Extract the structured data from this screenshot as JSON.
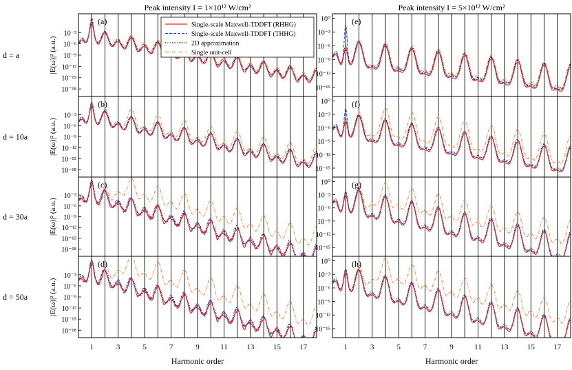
{
  "figure": {
    "column_titles": [
      "Peak intensity I = 1×10¹² W/cm²",
      "Peak intensity I = 5×10¹² W/cm²"
    ],
    "row_labels": [
      "d = a",
      "d = 10a",
      "d = 30a",
      "d = 50a"
    ],
    "ylabel": "|E(ω)|² (a.u.)",
    "xlabel": "Harmonic order",
    "colors": {
      "rhhg": "#e8202a",
      "thhg": "#1f3fd6",
      "approx2d": "#000000",
      "single": "#f08a3c"
    }
  },
  "chart_data": {
    "type": "line",
    "layout": "4x2 grid",
    "xlabel": "Harmonic order",
    "ylabel": "|E(ω)|² (a.u.)",
    "xlim": [
      0,
      18
    ],
    "x_ticks": [
      "1",
      "3",
      "5",
      "7",
      "9",
      "11",
      "13",
      "15",
      "17"
    ],
    "yscale": "log",
    "legend": {
      "placement": "top-right of panel (a)",
      "entries": [
        {
          "key": "rhhg",
          "label": "Single-scale Maxwell-TDDFT (RHHG)",
          "color": "#e8202a",
          "style": "solid"
        },
        {
          "key": "thhg",
          "label": "Single-scale Maxwell-TDDFT (THHG)",
          "color": "#1f3fd6",
          "style": "dashed"
        },
        {
          "key": "approx2d",
          "label": "2D approximation",
          "color": "#000000",
          "style": "dotted"
        },
        {
          "key": "single",
          "label": "Single unit-cell",
          "color": "#f08a3c",
          "style": "dashdot"
        }
      ]
    },
    "panels": [
      {
        "label": "(a)",
        "row": 0,
        "col": 0,
        "row_label": "d = a",
        "ylim_exp": [
          -20,
          2
        ],
        "yticks": [
          "10⁻³",
          "10⁻⁶",
          "10⁻⁹",
          "10⁻¹²",
          "10⁻¹⁵",
          "10⁻¹⁸"
        ],
        "ytick_exp": [
          -3,
          -6,
          -9,
          -12,
          -15,
          -18
        ],
        "model": {
          "p1": -2.5,
          "floor": -13.0,
          "hi": -1.5,
          "dip": 2.5,
          "sep": 0.0,
          "sepOdd": 0.5,
          "sepEven": 0.5,
          "thhg1": 1.2,
          "osc": 0.3
        }
      },
      {
        "label": "(e)",
        "row": 0,
        "col": 1,
        "ylim_exp": [
          -17,
          1
        ],
        "yticks": [
          "10⁰",
          "10⁻³",
          "10⁻⁶",
          "10⁻⁹",
          "10⁻¹²",
          "10⁻¹⁵"
        ],
        "ytick_exp": [
          0,
          -3,
          -6,
          -9,
          -12,
          -15
        ],
        "model": {
          "p1": -5.0,
          "floor": -10.5,
          "hi": -5.0,
          "dip": 2.0,
          "sep": 0.0,
          "sepOdd": 0.5,
          "sepEven": 0.5,
          "thhg1": 4.8,
          "osc": 0.3
        }
      },
      {
        "label": "(b)",
        "row": 1,
        "col": 0,
        "row_label": "d = 10a",
        "ylim_exp": [
          -20,
          2
        ],
        "yticks": [
          "10⁻³",
          "10⁻⁶",
          "10⁻⁹",
          "10⁻¹²",
          "10⁻¹⁵",
          "10⁻¹⁸"
        ],
        "ytick_exp": [
          -3,
          -6,
          -9,
          -12,
          -15,
          -18
        ],
        "model": {
          "p1": -1.5,
          "floor": -13.5,
          "hi": -2.5,
          "dip": 2.5,
          "sep": 2.0,
          "sepOdd": 0.5,
          "sepEven": 2.0,
          "thhg1": 0.8,
          "osc": 0.3
        }
      },
      {
        "label": "(f)",
        "row": 1,
        "col": 1,
        "ylim_exp": [
          -17,
          1
        ],
        "yticks": [
          "10⁰",
          "10⁻³",
          "10⁻⁶",
          "10⁻⁹",
          "10⁻¹²",
          "10⁻¹⁵"
        ],
        "ytick_exp": [
          0,
          -3,
          -6,
          -9,
          -12,
          -15
        ],
        "model": {
          "p1": -3.0,
          "floor": -10.5,
          "hi": -5.0,
          "dip": 2.0,
          "sep": 2.5,
          "sepOdd": 1.5,
          "sepEven": 2.5,
          "thhg1": 2.5,
          "osc": 0.3
        }
      },
      {
        "label": "(c)",
        "row": 2,
        "col": 0,
        "row_label": "d = 30a",
        "ylim_exp": [
          -20,
          2
        ],
        "yticks": [
          "10⁻³",
          "10⁻⁶",
          "10⁻⁹",
          "10⁻¹²",
          "10⁻¹⁵",
          "10⁻¹⁸"
        ],
        "ytick_exp": [
          -3,
          -6,
          -9,
          -12,
          -15,
          -18
        ],
        "model": {
          "p1": -1.0,
          "floor": -17.5,
          "hi": -2.0,
          "dip": 3.0,
          "sep": 5.0,
          "sepOdd": 4.0,
          "sepEven": 5.5,
          "thhg1": 0.0,
          "osc": 1.0
        }
      },
      {
        "label": "(g)",
        "row": 2,
        "col": 1,
        "ylim_exp": [
          -17,
          1
        ],
        "yticks": [
          "10⁰",
          "10⁻³",
          "10⁻⁶",
          "10⁻⁹",
          "10⁻¹²",
          "10⁻¹⁵"
        ],
        "ytick_exp": [
          0,
          -3,
          -6,
          -9,
          -12,
          -15
        ],
        "model": {
          "p1": -1.5,
          "floor": -12.0,
          "hi": -5.0,
          "dip": 2.5,
          "sep": 3.5,
          "sepOdd": 3.5,
          "sepEven": 3.0,
          "thhg1": 0.5,
          "osc": 0.3
        }
      },
      {
        "label": "(d)",
        "row": 3,
        "col": 0,
        "row_label": "d = 50a",
        "ylim_exp": [
          -20,
          2
        ],
        "yticks": [
          "10⁻³",
          "10⁻⁶",
          "10⁻⁹",
          "10⁻¹²",
          "10⁻¹⁵",
          "10⁻¹⁸"
        ],
        "ytick_exp": [
          -3,
          -6,
          -9,
          -12,
          -15,
          -18
        ],
        "model": {
          "p1": -1.0,
          "floor": -18.0,
          "hi": -2.0,
          "dip": 3.0,
          "sep": 6.0,
          "sepOdd": 4.5,
          "sepEven": 6.5,
          "thhg1": 0.0,
          "osc": 1.0
        }
      },
      {
        "label": "(h)",
        "row": 3,
        "col": 1,
        "ylim_exp": [
          -17,
          1
        ],
        "yticks": [
          "10⁰",
          "10⁻³",
          "10⁻⁶",
          "10⁻⁹",
          "10⁻¹²",
          "10⁻¹⁵"
        ],
        "ytick_exp": [
          0,
          -3,
          -6,
          -9,
          -12,
          -15
        ],
        "model": {
          "p1": -1.5,
          "floor": -13.0,
          "hi": -4.5,
          "dip": 2.5,
          "sep": 4.5,
          "sepOdd": 4.5,
          "sepEven": 4.0,
          "thhg1": 0.5,
          "osc": 0.3
        }
      }
    ]
  }
}
